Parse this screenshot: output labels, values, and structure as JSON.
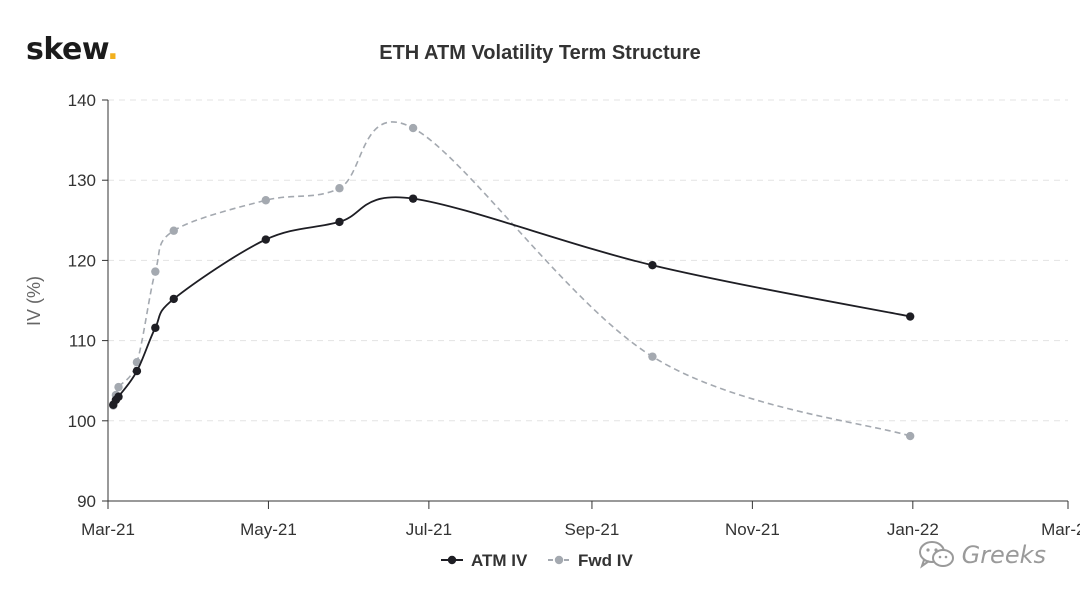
{
  "brand": {
    "name": "skew",
    "dot": "."
  },
  "watermark": {
    "text": "Greeks",
    "icon": "wechat-icon"
  },
  "chart_data": {
    "type": "line",
    "title": "ETH ATM Volatility Term Structure",
    "xlabel": "",
    "ylabel": "IV (%)",
    "ylim": [
      90,
      140
    ],
    "yticks": [
      90,
      100,
      110,
      120,
      130,
      140
    ],
    "xlim": [
      "2021-03-01",
      "2022-03-01"
    ],
    "xticks": [
      {
        "date": "2021-03-01",
        "label": "Mar-21"
      },
      {
        "date": "2021-05-01",
        "label": "May-21"
      },
      {
        "date": "2021-07-01",
        "label": "Jul-21"
      },
      {
        "date": "2021-09-01",
        "label": "Sep-21"
      },
      {
        "date": "2021-11-01",
        "label": "Nov-21"
      },
      {
        "date": "2022-01-01",
        "label": "Jan-22"
      },
      {
        "date": "2022-03-01",
        "label": "Mar-22"
      }
    ],
    "grid": "horizontal-dashed",
    "legend": "bottom-center",
    "series": [
      {
        "name": "ATM IV",
        "color": "#1e1e24",
        "style": "solid",
        "points": [
          {
            "x": "2021-03-03",
            "y": 102.0
          },
          {
            "x": "2021-03-04",
            "y": 102.6
          },
          {
            "x": "2021-03-05",
            "y": 103.0
          },
          {
            "x": "2021-03-12",
            "y": 106.2
          },
          {
            "x": "2021-03-19",
            "y": 111.6
          },
          {
            "x": "2021-03-26",
            "y": 115.2
          },
          {
            "x": "2021-04-30",
            "y": 122.6
          },
          {
            "x": "2021-05-28",
            "y": 124.8
          },
          {
            "x": "2021-06-25",
            "y": 127.7
          },
          {
            "x": "2021-09-24",
            "y": 119.4
          },
          {
            "x": "2021-12-31",
            "y": 113.0
          }
        ]
      },
      {
        "name": "Fwd IV",
        "color": "#a4a9b0",
        "style": "dashed",
        "points": [
          {
            "x": "2021-03-03",
            "y": 101.9
          },
          {
            "x": "2021-03-04",
            "y": 103.2
          },
          {
            "x": "2021-03-05",
            "y": 104.2
          },
          {
            "x": "2021-03-12",
            "y": 107.3
          },
          {
            "x": "2021-03-19",
            "y": 118.6
          },
          {
            "x": "2021-03-26",
            "y": 123.7
          },
          {
            "x": "2021-04-30",
            "y": 127.5
          },
          {
            "x": "2021-05-28",
            "y": 129.0
          },
          {
            "x": "2021-06-25",
            "y": 136.5
          },
          {
            "x": "2021-09-24",
            "y": 108.0
          },
          {
            "x": "2021-12-31",
            "y": 98.1
          }
        ]
      }
    ]
  }
}
